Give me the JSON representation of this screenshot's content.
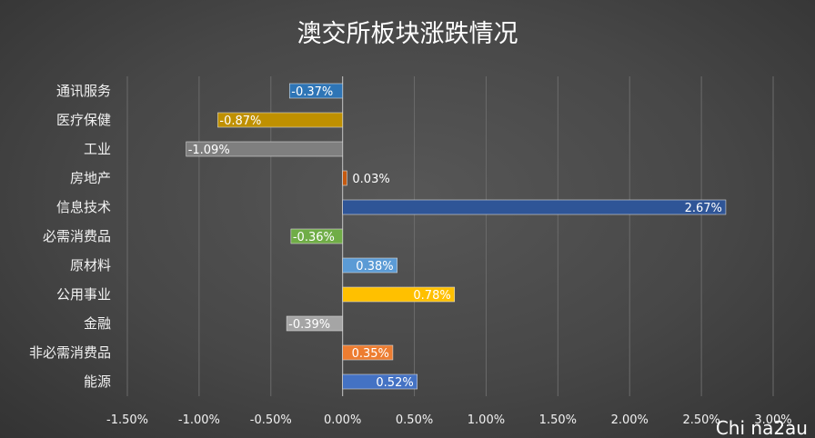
{
  "chart_data": {
    "type": "bar",
    "orientation": "horizontal",
    "title": "澳交所板块涨跌情况",
    "categories": [
      "通讯服务",
      "医疗保健",
      "工业",
      "房地产",
      "信息技术",
      "必需消费品",
      "原材料",
      "公用事业",
      "金融",
      "非必需消费品",
      "能源"
    ],
    "values": [
      -0.37,
      -0.87,
      -1.09,
      0.03,
      2.67,
      -0.36,
      0.38,
      0.78,
      -0.39,
      0.35,
      0.52
    ],
    "value_labels": [
      "-0.37%",
      "-0.87%",
      "-1.09%",
      "0.03%",
      "2.67%",
      "-0.36%",
      "0.38%",
      "0.78%",
      "-0.39%",
      "0.35%",
      "0.52%"
    ],
    "colors": [
      "#2e75b6",
      "#bf9000",
      "#7f7f7f",
      "#c55a11",
      "#2f5597",
      "#70ad47",
      "#5b9bd5",
      "#ffc000",
      "#a5a5a5",
      "#ed7d31",
      "#4472c4"
    ],
    "x_ticks": [
      "-1.50%",
      "-1.00%",
      "-0.50%",
      "0.00%",
      "0.50%",
      "1.00%",
      "1.50%",
      "2.00%",
      "2.50%",
      "3.00%"
    ],
    "xlim": [
      -1.5,
      3.0
    ],
    "grid": "vertical",
    "legend": "none"
  },
  "watermark": "Chi na2au"
}
